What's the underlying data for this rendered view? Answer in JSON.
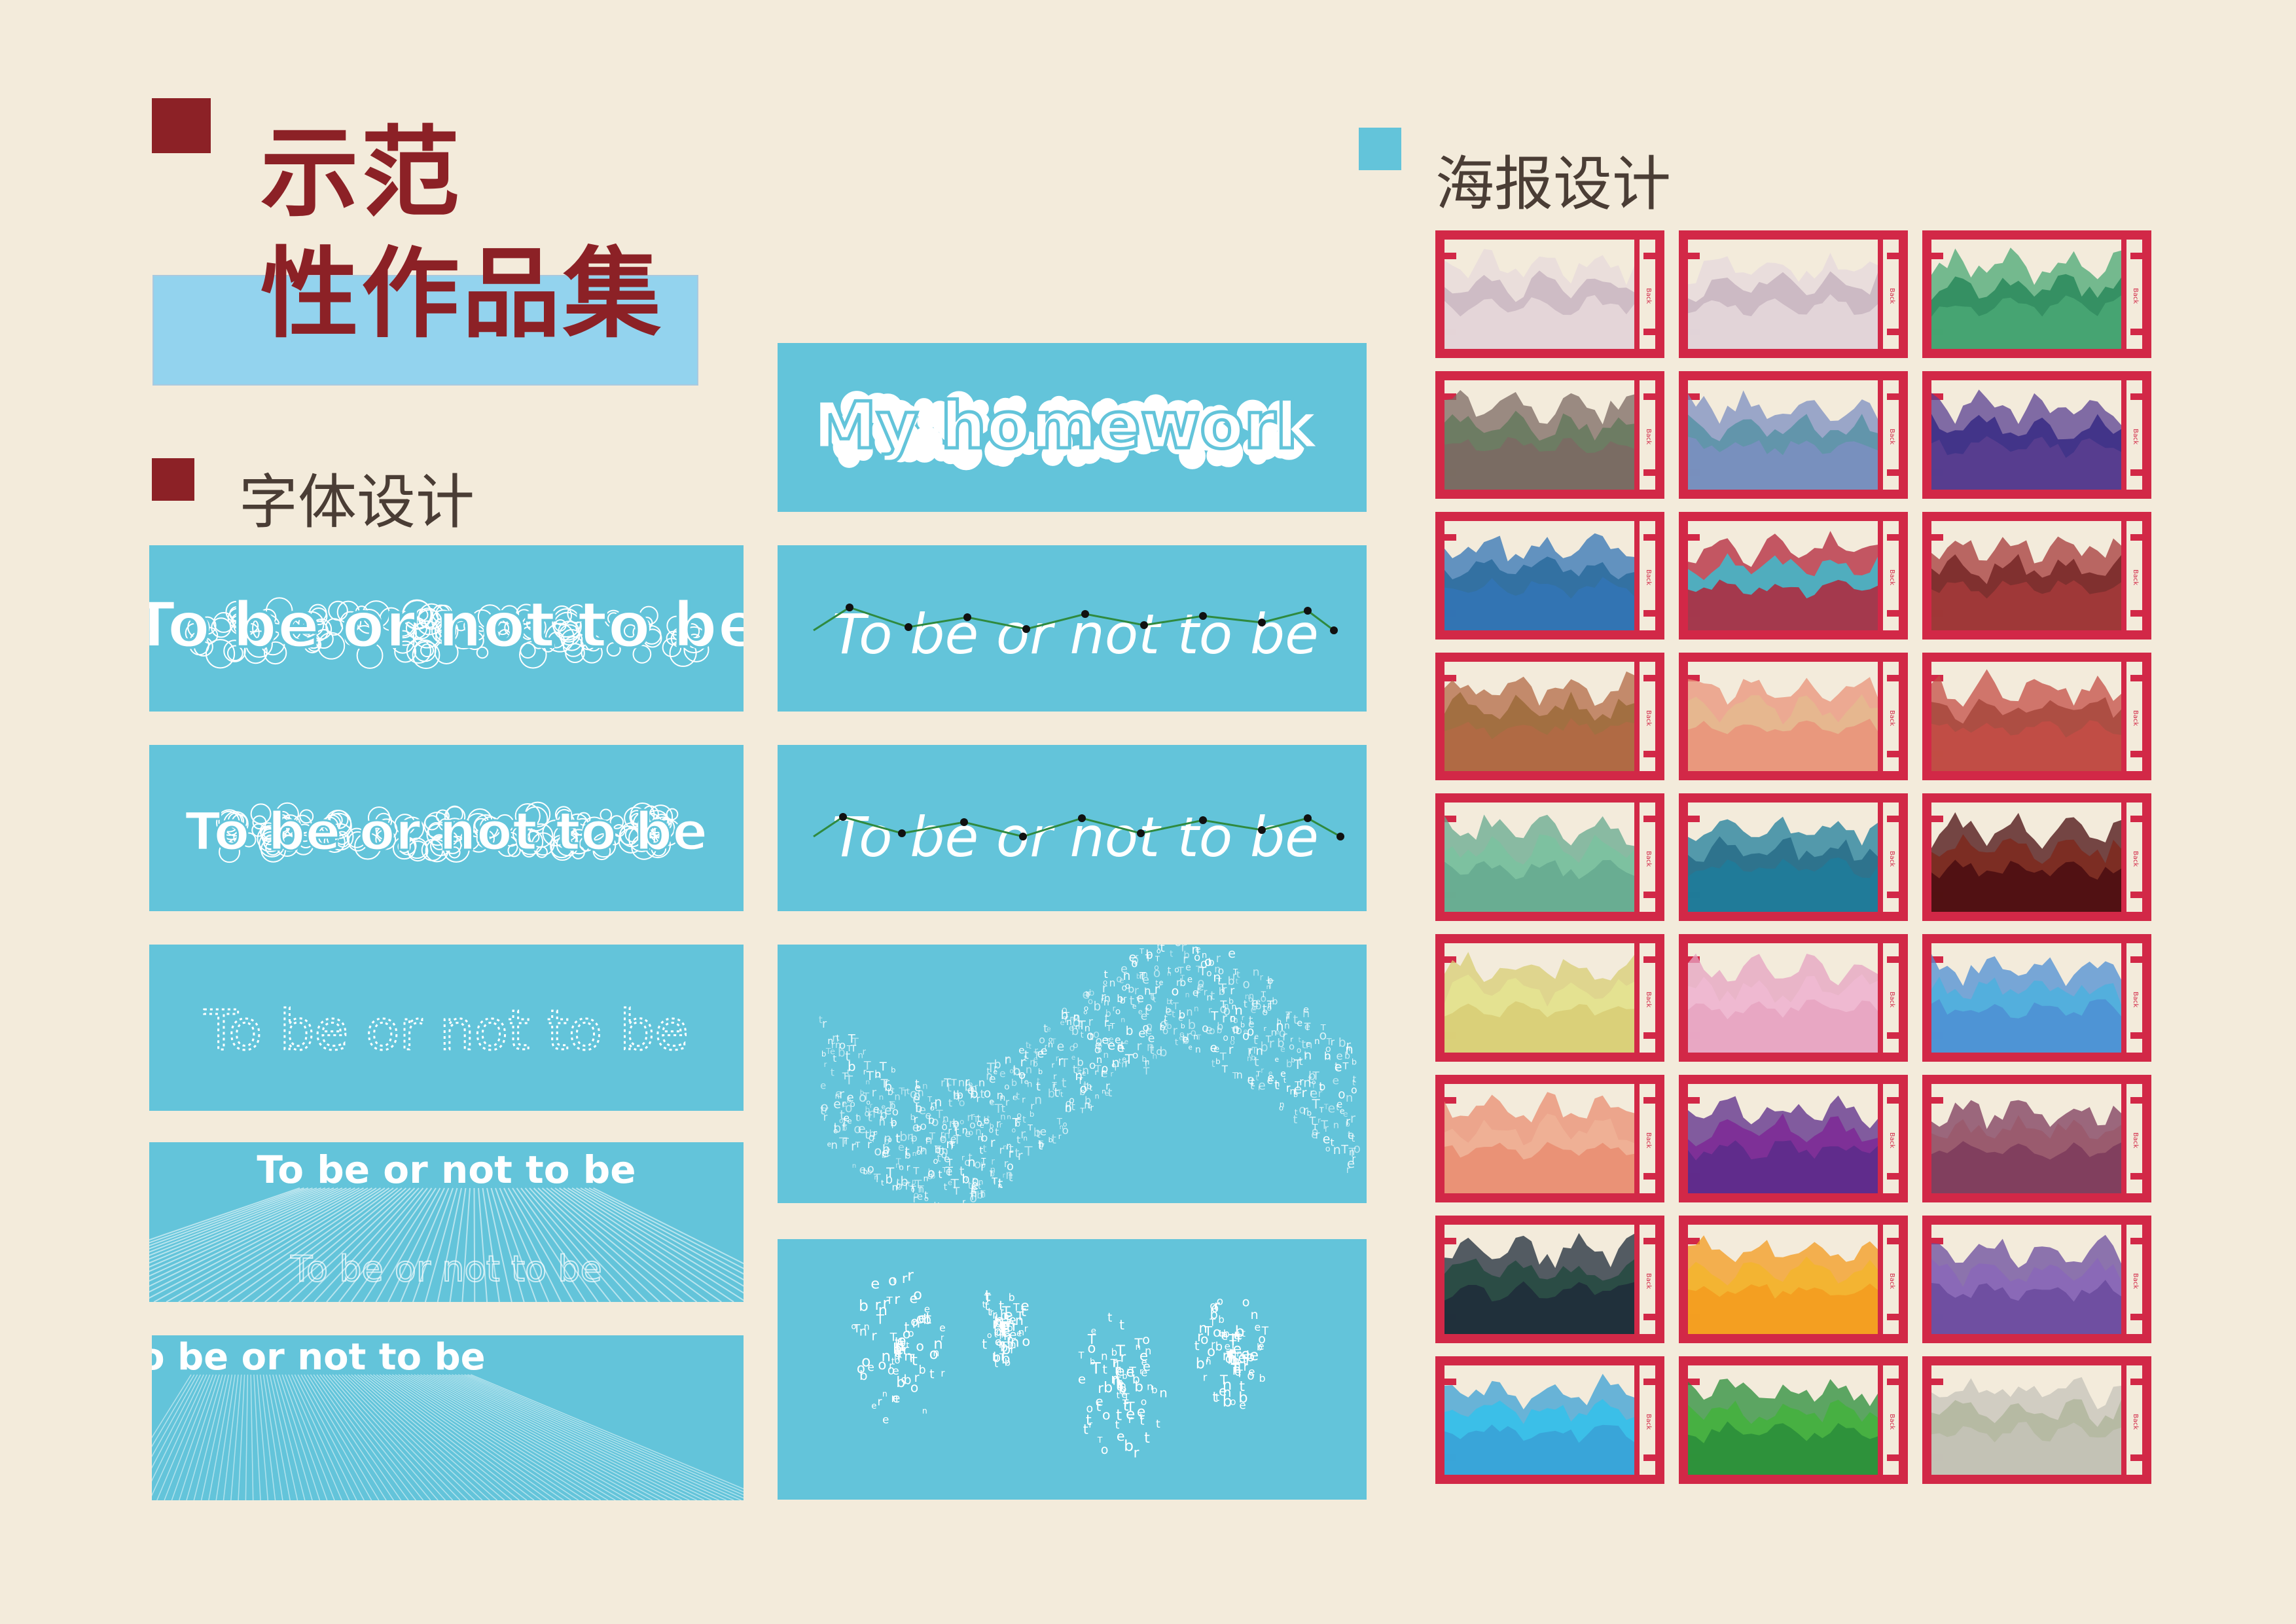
{
  "header": {
    "title_line1": "示范",
    "title_line2": "性作品集"
  },
  "sections": {
    "font_design": "字体设计",
    "poster_design": "海报设计"
  },
  "font_tiles": [
    {
      "text": "To be or not to be",
      "style": "bubble-outline"
    },
    {
      "text": "To be or not to be",
      "style": "bubble-chain"
    },
    {
      "text": "To be or not to be",
      "style": "dotted-outline"
    },
    {
      "text": "To be or not to be",
      "style": "perspective-rays"
    },
    {
      "text": "To be or not to be",
      "style": "light-rays"
    },
    {
      "text": "My homework",
      "style": "bubble-fill"
    },
    {
      "text": "To be or not to be",
      "style": "handwritten-path"
    },
    {
      "text": "To be or not to be",
      "style": "handwritten-path"
    },
    {
      "text": "",
      "style": "letter-swarm"
    },
    {
      "text": "",
      "style": "letter-scatter"
    }
  ],
  "poster_side_label": "Back",
  "poster_palettes": [
    [
      "#e7d9db",
      "#cbb8c2"
    ],
    [
      "#e5d8dc",
      "#c9b6c1"
    ],
    [
      "#49a874",
      "#2f8c5e"
    ],
    [
      "#7c6a63",
      "#687a5f"
    ],
    [
      "#7c8fc1",
      "#5c93a7"
    ],
    [
      "#5a4091",
      "#3b2f86"
    ],
    [
      "#3274b6",
      "#2f6e9e"
    ],
    [
      "#b3243a",
      "#44b7c9"
    ],
    [
      "#a53a39",
      "#7a2a2a"
    ],
    [
      "#b36a45",
      "#9e6b3d"
    ],
    [
      "#e9937a",
      "#e5b88f"
    ],
    [
      "#c44d45",
      "#a94a3f"
    ],
    [
      "#65a98f",
      "#7cc2a0"
    ],
    [
      "#1d7d9b",
      "#2a6f8a"
    ],
    [
      "#4a0d10",
      "#7d2a20"
    ],
    [
      "#d8cd74",
      "#e4e391"
    ],
    [
      "#e6a3c1",
      "#efb9d2"
    ],
    [
      "#4d8fd4",
      "#4fb0de"
    ],
    [
      "#e98d71",
      "#efb196"
    ],
    [
      "#5b2b8a",
      "#7d2b96"
    ],
    [
      "#7d3b5c",
      "#9a5a6d"
    ],
    [
      "#1e2b3a",
      "#274a42"
    ],
    [
      "#f39b1f",
      "#f3b530"
    ],
    [
      "#6a4b9d",
      "#8a68b8"
    ],
    [
      "#3aa0d6",
      "#36c0ea"
    ],
    [
      "#2a8d3a",
      "#45b13f"
    ],
    [
      "#c5c3b9",
      "#b3b8a0"
    ]
  ],
  "colors": {
    "background": "#f3ebdb",
    "accent_red": "#8c2126",
    "accent_blue": "#63c4da",
    "poster_frame": "#d22847"
  }
}
